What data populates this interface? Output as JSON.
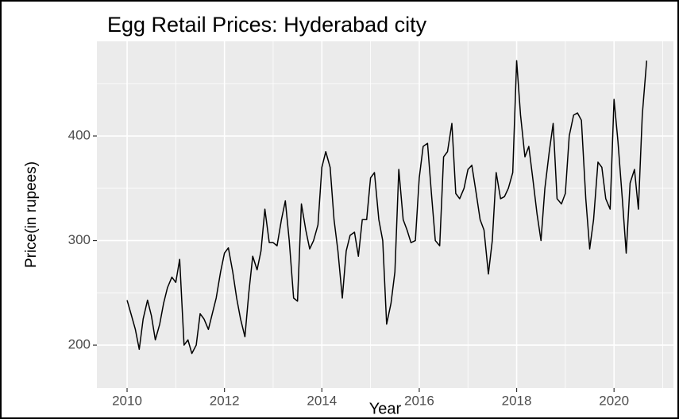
{
  "chart_data": {
    "type": "line",
    "title": "Egg Retail Prices: Hyderabad city",
    "xlabel": "Year",
    "ylabel": "Price(in rupees)",
    "xlim": [
      2009.38,
      2021.22
    ],
    "ylim": [
      159,
      490.5
    ],
    "xticks": [
      2010,
      2012,
      2014,
      2016,
      2018,
      2020
    ],
    "yticks": [
      200,
      300,
      400
    ],
    "x_minor_ticks": [
      2011,
      2013,
      2015,
      2017,
      2019,
      2021
    ],
    "y_minor_ticks": [
      250,
      350,
      450
    ],
    "grid": true,
    "x": [
      2010,
      2010.08,
      2010.17,
      2010.25,
      2010.33,
      2010.42,
      2010.5,
      2010.58,
      2010.67,
      2010.75,
      2010.83,
      2010.92,
      2011,
      2011.08,
      2011.17,
      2011.25,
      2011.33,
      2011.42,
      2011.5,
      2011.58,
      2011.67,
      2011.75,
      2011.83,
      2011.92,
      2012,
      2012.08,
      2012.17,
      2012.25,
      2012.33,
      2012.42,
      2012.5,
      2012.58,
      2012.67,
      2012.75,
      2012.83,
      2012.92,
      2013,
      2013.08,
      2013.17,
      2013.25,
      2013.33,
      2013.42,
      2013.5,
      2013.58,
      2013.67,
      2013.75,
      2013.83,
      2013.92,
      2014,
      2014.08,
      2014.17,
      2014.25,
      2014.33,
      2014.42,
      2014.5,
      2014.58,
      2014.67,
      2014.75,
      2014.83,
      2014.92,
      2015,
      2015.08,
      2015.17,
      2015.25,
      2015.33,
      2015.42,
      2015.5,
      2015.58,
      2015.67,
      2015.75,
      2015.83,
      2015.92,
      2016,
      2016.08,
      2016.17,
      2016.25,
      2016.33,
      2016.42,
      2016.5,
      2016.58,
      2016.67,
      2016.75,
      2016.83,
      2016.92,
      2017,
      2017.08,
      2017.17,
      2017.25,
      2017.33,
      2017.42,
      2017.5,
      2017.58,
      2017.67,
      2017.75,
      2017.83,
      2017.92,
      2018,
      2018.08,
      2018.17,
      2018.25,
      2018.33,
      2018.42,
      2018.5,
      2018.58,
      2018.67,
      2018.75,
      2018.83,
      2018.92,
      2019,
      2019.08,
      2019.17,
      2019.25,
      2019.33,
      2019.42,
      2019.5,
      2019.58,
      2019.67,
      2019.75,
      2019.83,
      2019.92,
      2020,
      2020.08,
      2020.17,
      2020.25,
      2020.33,
      2020.42,
      2020.5,
      2020.58,
      2020.67
    ],
    "series": [
      {
        "color": "#000000",
        "values": [
          243,
          230,
          215,
          196,
          225,
          243,
          228,
          205,
          220,
          240,
          255,
          265,
          260,
          282,
          200,
          205,
          192,
          200,
          230,
          225,
          215,
          230,
          245,
          270,
          288,
          293,
          270,
          245,
          225,
          208,
          250,
          285,
          272,
          290,
          330,
          298,
          298,
          295,
          320,
          338,
          300,
          245,
          242,
          335,
          310,
          292,
          300,
          315,
          370,
          385,
          370,
          320,
          290,
          245,
          290,
          305,
          308,
          285,
          320,
          320,
          360,
          365,
          320,
          300,
          220,
          240,
          270,
          368,
          320,
          310,
          298,
          300,
          360,
          390,
          393,
          345,
          300,
          295,
          380,
          385,
          412,
          345,
          340,
          350,
          368,
          372,
          345,
          320,
          310,
          268,
          300,
          365,
          340,
          342,
          350,
          365,
          472,
          420,
          380,
          390,
          360,
          325,
          300,
          350,
          385,
          412,
          340,
          335,
          345,
          400,
          420,
          422,
          415,
          340,
          292,
          320,
          375,
          370,
          340,
          330,
          435,
          395,
          340,
          288,
          355,
          368,
          330,
          420,
          472
        ]
      }
    ]
  }
}
